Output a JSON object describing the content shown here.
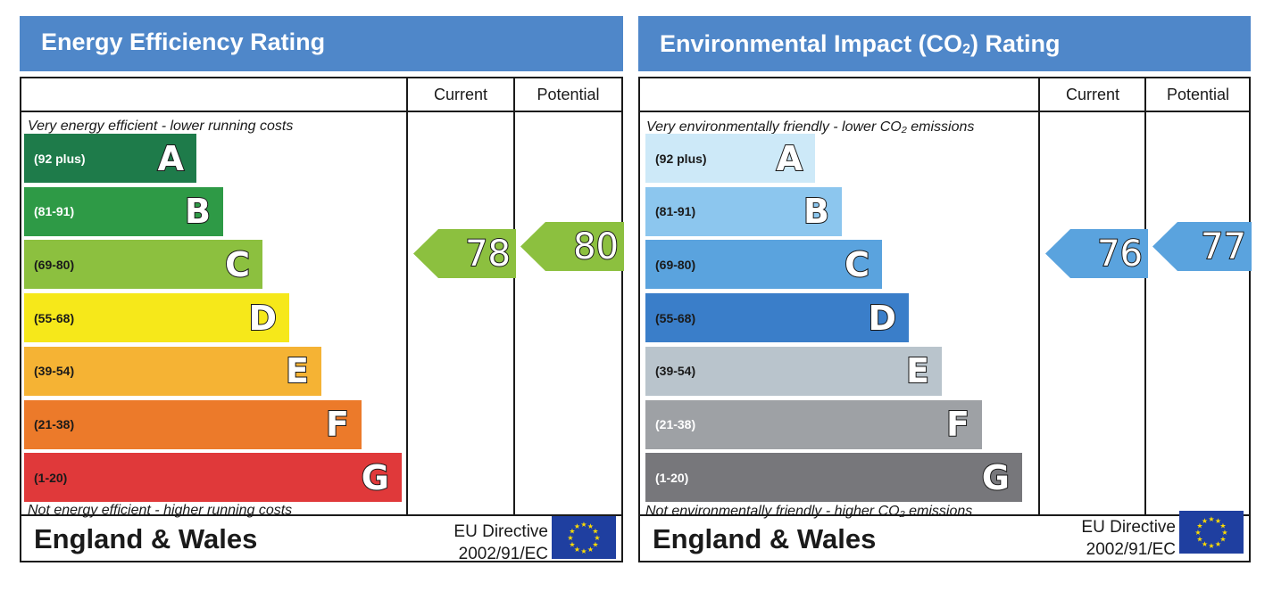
{
  "charts": {
    "energy": {
      "title": "Energy Efficiency Rating",
      "col_current": "Current",
      "col_potential": "Potential",
      "note_top": "Very energy efficient - lower running costs",
      "note_bottom": "Not energy efficient - higher running costs",
      "region": "England & Wales",
      "directive_line1": "EU Directive",
      "directive_line2": "2002/91/EC",
      "bands": [
        {
          "range": "(92 plus)",
          "letter": "A",
          "color": "#1e7b4a",
          "text": "#ffffff"
        },
        {
          "range": "(81-91)",
          "letter": "B",
          "color": "#2e9a46",
          "text": "#ffffff"
        },
        {
          "range": "(69-80)",
          "letter": "C",
          "color": "#8cc03f",
          "text": "#1a1a1a"
        },
        {
          "range": "(55-68)",
          "letter": "D",
          "color": "#f6e81a",
          "text": "#1a1a1a"
        },
        {
          "range": "(39-54)",
          "letter": "E",
          "color": "#f5b334",
          "text": "#1a1a1a"
        },
        {
          "range": "(21-38)",
          "letter": "F",
          "color": "#ec7a2a",
          "text": "#1a1a1a"
        },
        {
          "range": "(1-20)",
          "letter": "G",
          "color": "#e0393a",
          "text": "#1a1a1a"
        }
      ],
      "current": {
        "value": "78",
        "band": "C",
        "color": "#8cc03f"
      },
      "potential": {
        "value": "80",
        "band": "C",
        "color": "#8cc03f"
      }
    },
    "environment": {
      "title_main": "Environmental Impact (CO",
      "title_sub": "2",
      "title_end": ") Rating",
      "col_current": "Current",
      "col_potential": "Potential",
      "note_top": "Very environmentally friendly - lower CO₂ emissions",
      "note_bottom": "Not environmentally friendly - higher CO₂ emissions",
      "region": "England & Wales",
      "directive_line1": "EU Directive",
      "directive_line2": "2002/91/EC",
      "bands": [
        {
          "range": "(92 plus)",
          "letter": "A",
          "color": "#cde9f8",
          "text": "#1a1a1a"
        },
        {
          "range": "(81-91)",
          "letter": "B",
          "color": "#8cc6ee",
          "text": "#1a1a1a"
        },
        {
          "range": "(69-80)",
          "letter": "C",
          "color": "#5aa3de",
          "text": "#1a1a1a"
        },
        {
          "range": "(55-68)",
          "letter": "D",
          "color": "#3a7ec9",
          "text": "#1a1a1a"
        },
        {
          "range": "(39-54)",
          "letter": "E",
          "color": "#b9c4cc",
          "text": "#1a1a1a"
        },
        {
          "range": "(21-38)",
          "letter": "F",
          "color": "#9ea1a5",
          "text": "#ffffff"
        },
        {
          "range": "(1-20)",
          "letter": "G",
          "color": "#77777b",
          "text": "#ffffff"
        }
      ],
      "current": {
        "value": "76",
        "band": "C",
        "color": "#5aa3de"
      },
      "potential": {
        "value": "77",
        "band": "C",
        "color": "#5aa3de"
      }
    }
  },
  "chart_data": [
    {
      "type": "bar",
      "title": "Energy Efficiency Rating",
      "categories": [
        "A (92 plus)",
        "B (81-91)",
        "C (69-80)",
        "D (55-68)",
        "E (39-54)",
        "F (21-38)",
        "G (1-20)"
      ],
      "current": 78,
      "potential": 80
    },
    {
      "type": "bar",
      "title": "Environmental Impact (CO2) Rating",
      "categories": [
        "A (92 plus)",
        "B (81-91)",
        "C (69-80)",
        "D (55-68)",
        "E (39-54)",
        "F (21-38)",
        "G (1-20)"
      ],
      "current": 76,
      "potential": 77
    }
  ]
}
